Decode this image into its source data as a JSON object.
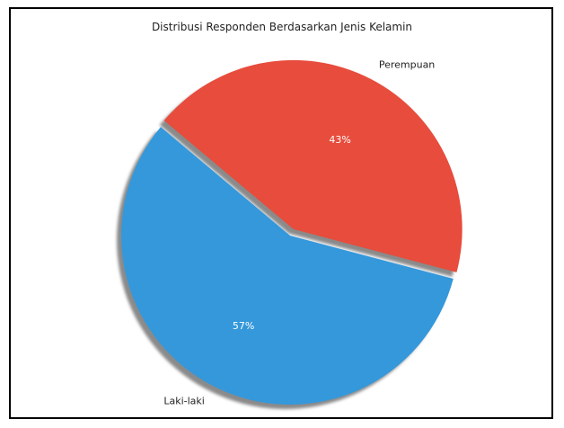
{
  "chart_data": {
    "type": "pie",
    "title": "Distribusi Responden Berdasarkan Jenis Kelamin",
    "slices": [
      {
        "label": "Perempuan",
        "value": 43,
        "display": "43%",
        "color": "#e74c3c",
        "exploded": true
      },
      {
        "label": "Laki-laki",
        "value": 57,
        "display": "57%",
        "color": "#3498db",
        "exploded": false
      }
    ],
    "shadow": true,
    "legend": "none"
  }
}
